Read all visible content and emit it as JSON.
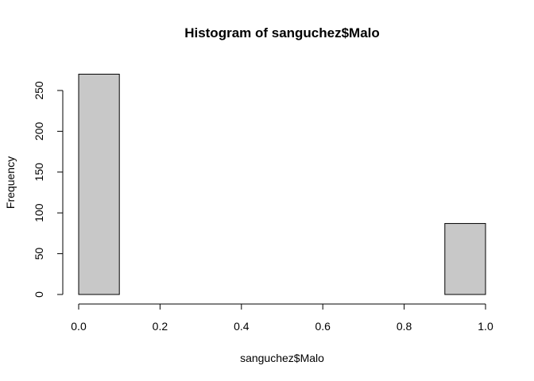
{
  "chart_data": {
    "type": "bar",
    "title": "Histogram of sanguchez$Malo",
    "xlabel": "sanguchez$Malo",
    "ylabel": "Frequency",
    "bins": [
      {
        "x0": 0.0,
        "x1": 0.1,
        "count": 270
      },
      {
        "x0": 0.1,
        "x1": 0.2,
        "count": 0
      },
      {
        "x0": 0.2,
        "x1": 0.3,
        "count": 0
      },
      {
        "x0": 0.3,
        "x1": 0.4,
        "count": 0
      },
      {
        "x0": 0.4,
        "x1": 0.5,
        "count": 0
      },
      {
        "x0": 0.5,
        "x1": 0.6,
        "count": 0
      },
      {
        "x0": 0.6,
        "x1": 0.7,
        "count": 0
      },
      {
        "x0": 0.7,
        "x1": 0.8,
        "count": 0
      },
      {
        "x0": 0.8,
        "x1": 0.9,
        "count": 0
      },
      {
        "x0": 0.9,
        "x1": 1.0,
        "count": 87
      }
    ],
    "xlim": [
      0.0,
      1.0
    ],
    "ylim": [
      0,
      270
    ],
    "x_ticks": [
      0.0,
      0.2,
      0.4,
      0.6,
      0.8,
      1.0
    ],
    "x_tick_labels": [
      "0.0",
      "0.2",
      "0.4",
      "0.6",
      "0.8",
      "1.0"
    ],
    "y_ticks": [
      0,
      50,
      100,
      150,
      200,
      250
    ],
    "y_tick_labels": [
      "0",
      "50",
      "100",
      "150",
      "200",
      "250"
    ],
    "grid": false,
    "legend": "none",
    "bar_fill": "#c8c8c8",
    "bar_stroke": "#000000"
  }
}
